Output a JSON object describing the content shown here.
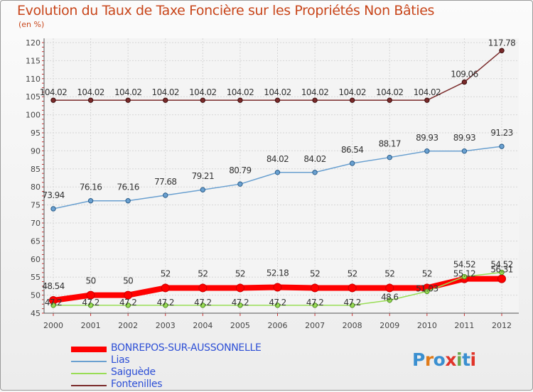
{
  "title": "Evolution du Taux de Taxe Foncière sur les Propriétés Non Bâties",
  "unit_label": "(en %)",
  "logo": {
    "letters": [
      "P",
      "r",
      "o",
      "x",
      "i",
      "t",
      "i"
    ],
    "colors": [
      "#3a8fd0",
      "#e07b1a",
      "#3a8fd0",
      "#e0342a",
      "#6aa84f",
      "#3a8fd0",
      "#e0342a"
    ]
  },
  "chart_data": {
    "type": "line",
    "title": "Evolution du Taux de Taxe Foncière sur les Propriétés Non Bâties",
    "ylabel": "(en %)",
    "xlabel": "",
    "ylim": [
      45,
      120
    ],
    "yticks": [
      45,
      50,
      55,
      60,
      65,
      70,
      75,
      80,
      85,
      90,
      95,
      100,
      105,
      110,
      115,
      120
    ],
    "x": [
      "2000",
      "2001",
      "2002",
      "2003",
      "2004",
      "2005",
      "2006",
      "2007",
      "2008",
      "2009",
      "2010",
      "2011",
      "2012"
    ],
    "series": [
      {
        "name": "BONREPOS-SUR-AUSSONNELLE",
        "color": "#ff0000",
        "values": [
          48.54,
          50,
          50,
          52,
          52,
          52,
          52.18,
          52,
          52,
          52,
          52,
          54.52,
          54.52
        ],
        "labels": [
          "48.54",
          "50",
          "50",
          "52",
          "52",
          "52",
          "52.18",
          "52",
          "52",
          "52",
          "52",
          "54.52",
          "54.52"
        ]
      },
      {
        "name": "Lias",
        "color": "#6aa0d0",
        "values": [
          73.94,
          76.16,
          76.16,
          77.68,
          79.21,
          80.79,
          84.02,
          84.02,
          86.54,
          88.17,
          89.93,
          89.93,
          91.23
        ],
        "labels": [
          "73.94",
          "76.16",
          "76.16",
          "77.68",
          "79.21",
          "80.79",
          "84.02",
          "84.02",
          "86.54",
          "88.17",
          "89.93",
          "89.93",
          "91.23"
        ]
      },
      {
        "name": "Saiguède",
        "color": "#99dd55",
        "values": [
          47.2,
          47.2,
          47.2,
          47.2,
          47.2,
          47.2,
          47.2,
          47.2,
          47.2,
          48.6,
          51.03,
          55.12,
          56.31
        ],
        "labels": [
          "47.2",
          "47.2",
          "47.2",
          "47.2",
          "47.2",
          "47.2",
          "47.2",
          "47.2",
          "47.2",
          "48.6",
          "51.03",
          "55.12",
          "56.31"
        ]
      },
      {
        "name": "Fontenilles",
        "color": "#7a2a2a",
        "values": [
          104.02,
          104.02,
          104.02,
          104.02,
          104.02,
          104.02,
          104.02,
          104.02,
          104.02,
          104.02,
          104.02,
          109.06,
          117.78
        ],
        "labels": [
          "104.02",
          "104.02",
          "104.02",
          "104.02",
          "104.02",
          "104.02",
          "104.02",
          "104.02",
          "104.02",
          "104.02",
          "104.02",
          "109.06",
          "117.78"
        ]
      }
    ],
    "legend_position": "bottom-left"
  }
}
